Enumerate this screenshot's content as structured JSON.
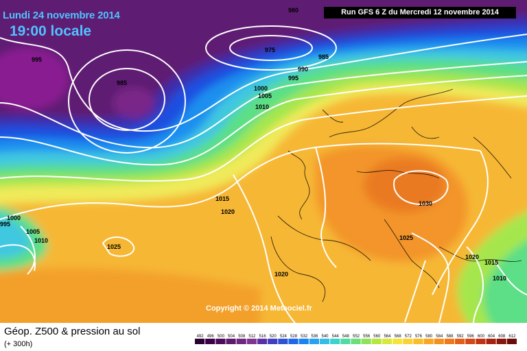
{
  "header": {
    "date": "Lundi 24 novembre 2014",
    "time": "19:00 locale",
    "run": "Run GFS 6 Z du Mercredi 12 novembre 2014"
  },
  "copyright": "Copyright © 2014 Meteociel.fr",
  "footer": {
    "title": "Géop. Z500 & pression au sol",
    "subtitle": "(+ 300h)"
  },
  "isobar_labels": [
    "980",
    "975",
    "985",
    "995",
    "985",
    "990",
    "995",
    "1000",
    "1005",
    "1010",
    "1015",
    "1020",
    "1000",
    "1005",
    "1010",
    "1025",
    "1020",
    "1030",
    "1025",
    "1020",
    "1015",
    "1010",
    "995"
  ],
  "legend": {
    "ticks": [
      "492",
      "496",
      "500",
      "504",
      "508",
      "512",
      "516",
      "520",
      "524",
      "528",
      "532",
      "536",
      "540",
      "544",
      "548",
      "552",
      "556",
      "560",
      "564",
      "568",
      "572",
      "576",
      "580",
      "584",
      "588",
      "592",
      "596",
      "600",
      "604",
      "608",
      "612"
    ],
    "colors": [
      "#2a0033",
      "#3c0045",
      "#4c0a5a",
      "#5d1a6c",
      "#6e287f",
      "#7e3591",
      "#5b2fa5",
      "#3f3fbf",
      "#2e52d6",
      "#1f66e8",
      "#1a83ef",
      "#26a2f0",
      "#35bde8",
      "#3fd2cc",
      "#4fdca2",
      "#6be07a",
      "#90e357",
      "#b6e642",
      "#d9e83a",
      "#f5e53a",
      "#fbd233",
      "#fbbd2a",
      "#f9a623",
      "#f58f1e",
      "#ef781b",
      "#e35f19",
      "#d24816",
      "#bf3413",
      "#a52411",
      "#8a170e",
      "#6a0c08"
    ]
  },
  "colors": {
    "deep_purple": "#5a1c6e",
    "blue": "#1f4fe0",
    "green": "#6fe36f",
    "yellow": "#f2ea58",
    "orange": "#f4a531",
    "isobar": "#ffffff"
  }
}
